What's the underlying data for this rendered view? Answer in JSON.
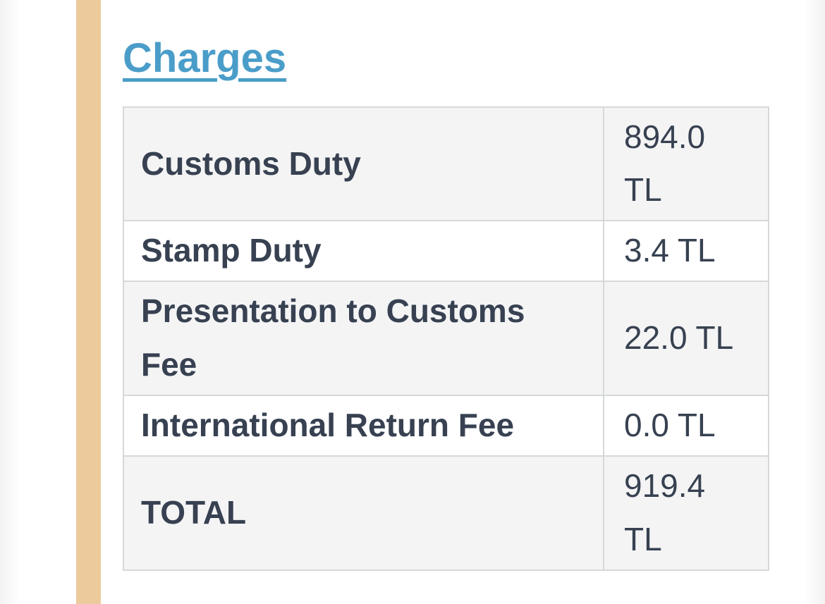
{
  "heading": {
    "label": "Charges"
  },
  "charges_table": {
    "rows": [
      {
        "label": "Customs Duty",
        "value": "894.0 TL"
      },
      {
        "label": "Stamp Duty",
        "value": "3.4 TL"
      },
      {
        "label": "Presentation to Customs Fee",
        "value": "22.0 TL"
      },
      {
        "label": "International Return Fee",
        "value": "0.0 TL"
      },
      {
        "label": "TOTAL",
        "value": "919.4 TL"
      }
    ]
  },
  "colors": {
    "heading_link": "#4a9dc9",
    "accent_stripe": "#ecca9c",
    "row_alt_background": "#f4f4f5",
    "table_border": "#d6d8da",
    "text": "#374151"
  }
}
